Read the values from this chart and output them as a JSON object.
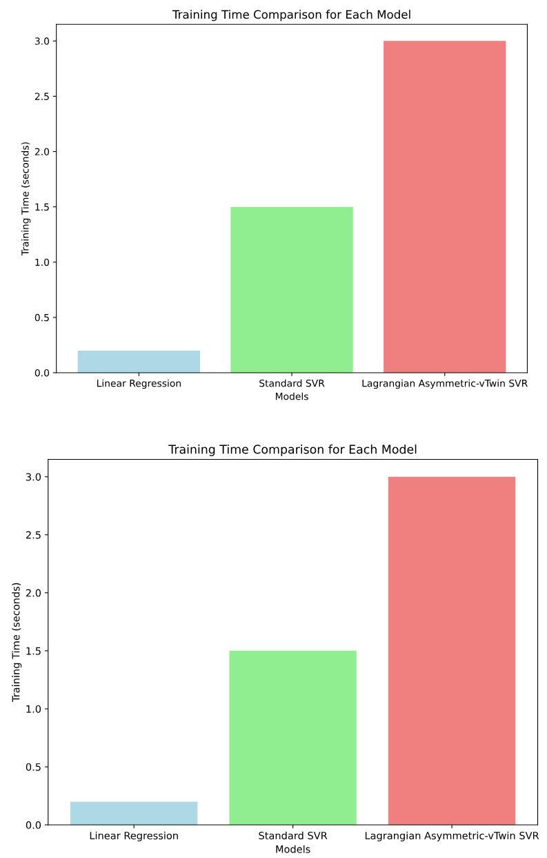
{
  "chart_data": [
    {
      "type": "bar",
      "title": "Training Time Comparison for Each Model",
      "xlabel": "Models",
      "ylabel": "Training Time (seconds)",
      "categories": [
        "Linear Regression",
        "Standard SVR",
        "Lagrangian Asymmetric-vTwin SVR"
      ],
      "values": [
        0.2,
        1.5,
        3.0
      ],
      "colors": [
        "#add8e6",
        "#90ee90",
        "#f08080"
      ],
      "ylim": [
        0,
        3.15
      ],
      "yticks": [
        {
          "value": 0,
          "label": "0.0"
        },
        {
          "value": 0.5,
          "label": "0.5"
        },
        {
          "value": 1,
          "label": "1.0"
        },
        {
          "value": 1.5,
          "label": "1.5"
        },
        {
          "value": 2,
          "label": "2.0"
        },
        {
          "value": 2.5,
          "label": "2.5"
        },
        {
          "value": 3,
          "label": "3.0"
        }
      ],
      "grid": false
    },
    {
      "type": "bar",
      "title": "Training Time Comparison for Each Model",
      "xlabel": "Models",
      "ylabel": "Training Time (seconds)",
      "categories": [
        "Linear Regression",
        "Standard SVR",
        "Lagrangian Asymmetric-vTwin SVR"
      ],
      "values": [
        0.2,
        1.5,
        3.0
      ],
      "colors": [
        "#add8e6",
        "#90ee90",
        "#f08080"
      ],
      "ylim": [
        0,
        3.15
      ],
      "yticks": [
        {
          "value": 0,
          "label": "0.0"
        },
        {
          "value": 0.5,
          "label": "0.5"
        },
        {
          "value": 1,
          "label": "1.0"
        },
        {
          "value": 1.5,
          "label": "1.5"
        },
        {
          "value": 2,
          "label": "2.0"
        },
        {
          "value": 2.5,
          "label": "2.5"
        },
        {
          "value": 3,
          "label": "3.0"
        }
      ],
      "grid": false
    }
  ]
}
